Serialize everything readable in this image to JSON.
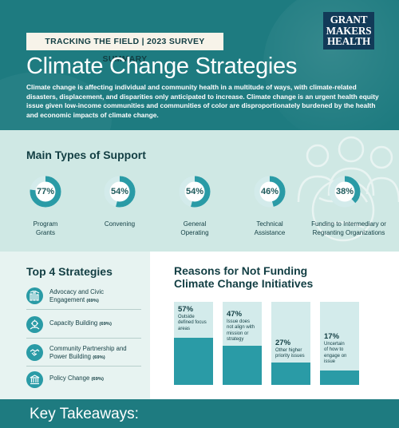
{
  "header": {
    "kicker": "TRACKING THE FIELD | 2023 SURVEY SUMMARY",
    "logo_lines": [
      "GRANT",
      "MAKERS",
      "HEALTH"
    ],
    "title": "Climate Change Strategies",
    "intro": "Climate change is affecting individual and community health in a multitude of ways, with climate-related disasters, displacement, and disparities only anticipated to increase. Climate change is an urgent health equity issue given low-income communities and communities of color are disproportionately burdened by the health and economic impacts of climate change."
  },
  "support": {
    "title": "Main Types of Support",
    "items": [
      {
        "pct_label": "77%",
        "value": 77,
        "label_lines": [
          "Program",
          "Grants"
        ]
      },
      {
        "pct_label": "54%",
        "value": 54,
        "label_lines": [
          "Convening"
        ]
      },
      {
        "pct_label": "54%",
        "value": 54,
        "label_lines": [
          "General",
          "Operating"
        ]
      },
      {
        "pct_label": "46%",
        "value": 46,
        "label_lines": [
          "Technical",
          "Assistance"
        ]
      },
      {
        "pct_label": "38%",
        "value": 38,
        "label_lines": [
          "Funding to Intermediary or",
          "Regranting Organizations"
        ]
      }
    ]
  },
  "strategies": {
    "title": "Top 4 Strategies",
    "items": [
      {
        "label_lines": [
          "Advocacy and Civic",
          "Engagement"
        ],
        "pct": "(69%)",
        "icon": "megaphone-icon"
      },
      {
        "label_lines": [
          "Capacity Building"
        ],
        "pct": "(69%)",
        "icon": "gear-hand-icon"
      },
      {
        "label_lines": [
          "Community Partnership and",
          "Power Building"
        ],
        "pct": "(69%)",
        "icon": "handshake-icon"
      },
      {
        "label_lines": [
          "Policy Change"
        ],
        "pct": "(69%)",
        "icon": "capitol-icon"
      }
    ]
  },
  "reasons": {
    "title_lines": [
      "Reasons for Not Funding",
      "Climate Change Initiatives"
    ],
    "items": [
      {
        "pct_label": "57%",
        "value": 57,
        "desc_lines": [
          "Outside",
          "defined focus",
          "areas"
        ]
      },
      {
        "pct_label": "47%",
        "value": 47,
        "desc_lines": [
          "Issue does",
          "not align with",
          "mission or",
          "strategy"
        ]
      },
      {
        "pct_label": "27%",
        "value": 27,
        "desc_lines": [
          "Other higher",
          "priority issues"
        ]
      },
      {
        "pct_label": "17%",
        "value": 17,
        "desc_lines": [
          "Uncertain",
          "of how to",
          "engage on",
          "issue"
        ]
      }
    ]
  },
  "footer": {
    "title": "Key Takeaways:"
  },
  "colors": {
    "teal_dark": "#1e7b80",
    "teal": "#2a9ba6",
    "teal_light": "#d3ebeb",
    "navy": "#123e43",
    "logo_bg": "#123a58",
    "support_bg": "#cfe8e4"
  }
}
